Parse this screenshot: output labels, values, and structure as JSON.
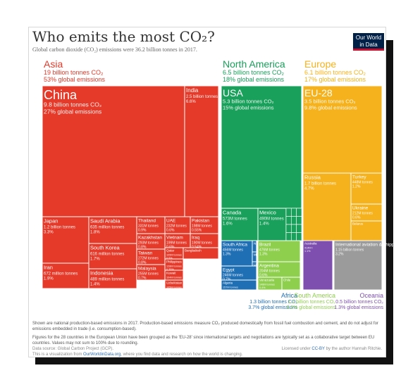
{
  "page": {
    "title": "Who emits the most CO₂?",
    "subtitle": "Global carbon dioxide (CO₂) emissions were 36.2 billion tonnes in 2017.",
    "logo_line1": "Our World",
    "logo_line2": "in Data",
    "note1": "Shown are national production-based emissions in 2017. Production-based emissions measure CO₂ produced domestically from fossil fuel combustion and cement, and do not adjust for emissions embedded in trade (i.e. consumption-based).",
    "note2": "Figures for the 28 countries in the European Union have been grouped as the 'EU-28' since international targets and negotiations are typically set as a collaborative target between EU countries. Values may not sum to 100% due to rounding.",
    "source": "Data source: Global Carbon Project (GCP).",
    "visualization_prefix": "This is a visualization from ",
    "visualization_link": "OurWorldinData.org",
    "visualization_suffix": ", where you find data and research on how the world is changing.",
    "license_prefix": "Licensed under ",
    "license_link": "CC-BY",
    "license_suffix": " by the author Hannah Ritchie."
  },
  "chart_data": {
    "type": "treemap",
    "unit": "share of global CO₂ emissions, 2017",
    "colors": {
      "Asia": "#e53a2a",
      "North America": "#19a05a",
      "Europe": "#f6b21c",
      "Africa": "#1f6fb5",
      "South America": "#8fcf4e",
      "Oceania": "#7e4fae",
      "International": "#9b9b9b"
    },
    "regions": [
      {
        "name": "Asia",
        "color_key": "Asia",
        "value_label": "19 billion tonnes CO₂",
        "share_label": "53% global emissions",
        "countries": [
          {
            "name": "China",
            "size": 27,
            "lines": [
              "9.8 billion tonnes CO₂",
              "27% global emissions"
            ],
            "text": "xl"
          },
          {
            "name": "India",
            "size": 6.6,
            "lines": [
              "2.5 billion tonnes",
              "6.6%"
            ],
            "text": "md"
          },
          {
            "name": "Japan",
            "size": 3.3,
            "lines": [
              "1.2 billion tonnes",
              "3.3%"
            ],
            "text": "sm"
          },
          {
            "name": "Saudi Arabia",
            "size": 1.8,
            "lines": [
              "635 million tonnes",
              "1.8%"
            ],
            "text": "sm"
          },
          {
            "name": "Thailand",
            "size": 0.9,
            "lines": [
              "331M tonnes",
              "0.9%"
            ],
            "text": "xs"
          },
          {
            "name": "UAE",
            "size": 0.6,
            "lines": [
              "232M tonnes",
              "0.6%"
            ],
            "text": "xs"
          },
          {
            "name": "Pakistan",
            "size": 0.55,
            "lines": [
              "198M tonnes",
              "0.55%"
            ],
            "text": "xs"
          },
          {
            "name": "Vietnam",
            "size": 0.6,
            "lines": [
              "199M tonnes",
              "0.6%"
            ],
            "text": "xs"
          },
          {
            "name": "Iraq",
            "size": 0.54,
            "lines": [
              "190M tonnes",
              "0.54%"
            ],
            "text": "xs"
          },
          {
            "name": "Kazakhstan",
            "size": 0.8,
            "lines": [
              "293M tonnes",
              "0.8%"
            ],
            "text": "xs"
          },
          {
            "name": "Qatar",
            "size": 0.5,
            "lines": [
              "105M tonnes",
              "0.5%"
            ],
            "text": "xxs"
          },
          {
            "name": "Bangladesh",
            "size": 0.2,
            "lines": [],
            "text": "xxs"
          },
          {
            "name": "Iran",
            "size": 1.9,
            "lines": [
              "672 million tonnes",
              "1.9%"
            ],
            "text": "sm"
          },
          {
            "name": "South Korea",
            "size": 1.7,
            "lines": [
              "616 million tonnes",
              "1.7%"
            ],
            "text": "sm"
          },
          {
            "name": "Taiwan",
            "size": 0.8,
            "lines": [
              "272M tonnes",
              "0.8%"
            ],
            "text": "xs"
          },
          {
            "name": "Philippines",
            "size": 0.35,
            "lines": [
              "128M tonnes",
              "0.35%"
            ],
            "text": "xxs"
          },
          {
            "name": "Kuwait",
            "size": 0.3,
            "lines": [
              "104M tonnes",
              "0.3%"
            ],
            "text": "xxs"
          },
          {
            "name": "Indonesia",
            "size": 1.4,
            "lines": [
              "489 million tonnes",
              "1.4%"
            ],
            "text": "sm"
          },
          {
            "name": "Malaysia",
            "size": 0.7,
            "lines": [
              "255M tonnes",
              "0.7%"
            ],
            "text": "xs"
          },
          {
            "name": "Uzbekistan",
            "size": 0.3,
            "lines": [
              "105M tonnes",
              "0.3%"
            ],
            "text": "xxs"
          }
        ]
      },
      {
        "name": "North America",
        "color_key": "North America",
        "value_label": "6.5 billion tonnes CO₂",
        "share_label": "18% global emissions",
        "countries": [
          {
            "name": "USA",
            "size": 15,
            "lines": [
              "5.3 billion tonnes CO₂",
              "15% global emissions"
            ],
            "text": "lg"
          },
          {
            "name": "Canada",
            "size": 1.6,
            "lines": [
              "573M tonnes",
              "1.6%"
            ],
            "text": "sm"
          },
          {
            "name": "Mexico",
            "size": 1.4,
            "lines": [
              "490M tonnes",
              "1.4%"
            ],
            "text": "sm"
          }
        ]
      },
      {
        "name": "Europe",
        "color_key": "Europe",
        "value_label": "6.1 billion tonnes CO₂",
        "share_label": "17% global emissions",
        "countries": [
          {
            "name": "EU-28",
            "size": 9.8,
            "lines": [
              "3.5 billion tonnes CO₂",
              "9.8% global emissions"
            ],
            "text": "lg"
          },
          {
            "name": "Russia",
            "size": 4.7,
            "lines": [
              "1.7 billion tonnes",
              "4.7%"
            ],
            "text": "sm"
          },
          {
            "name": "Turkey",
            "size": 1.2,
            "lines": [
              "448M tonnes",
              "1.2%"
            ],
            "text": "xs"
          },
          {
            "name": "Ukraine",
            "size": 0.6,
            "lines": [
              "212M tonnes",
              "0.6%"
            ],
            "text": "xs"
          },
          {
            "name": "Belarus",
            "size": 0.2,
            "lines": [],
            "text": "xxs"
          }
        ]
      },
      {
        "name": "Africa",
        "color_key": "Africa",
        "value_label": "1.3 billion tonnes CO₂",
        "share_label": "3.7% global emissions",
        "countries": [
          {
            "name": "South Africa",
            "size": 1.3,
            "lines": [
              "456M tonnes",
              "1.3%"
            ],
            "text": "xs"
          },
          {
            "name": "Nigeria",
            "size": 0.3,
            "lines": [],
            "text": "xxs"
          },
          {
            "name": "Morocco",
            "size": 0.2,
            "lines": [],
            "text": "xxs"
          },
          {
            "name": "Libya",
            "size": 0.15,
            "lines": [],
            "text": "xxs"
          },
          {
            "name": "Egypt",
            "size": 0.7,
            "lines": [
              "246M tonnes",
              "0.7%"
            ],
            "text": "xs"
          },
          {
            "name": "Algeria",
            "size": 0.45,
            "lines": [
              "157M tonnes",
              "0.45%"
            ],
            "text": "xxs"
          }
        ]
      },
      {
        "name": "South America",
        "color_key": "South America",
        "value_label": "1.1 billion tonnes CO₂",
        "share_label": "3.2% global emissions",
        "countries": [
          {
            "name": "Brazil",
            "size": 1.3,
            "lines": [
              "476M tonnes",
              "1.3%"
            ],
            "text": "xs"
          },
          {
            "name": "Argentina",
            "size": 0.6,
            "lines": [
              "204M tonnes",
              "0.6%"
            ],
            "text": "xs"
          },
          {
            "name": "Venezuela",
            "size": 0.4,
            "lines": [
              "148M tonnes",
              "0.4%"
            ],
            "text": "xxs"
          },
          {
            "name": "Chile",
            "size": 0.25,
            "lines": [],
            "text": "xxs"
          }
        ]
      },
      {
        "name": "Oceania",
        "color_key": "Oceania",
        "value_label": "0.5 billion tonnes CO₂",
        "share_label": "1.3% global emissions",
        "countries": [
          {
            "name": "Australia",
            "size": 1.1,
            "lines": [
              "414M t",
              "1.1%"
            ],
            "text": "xxs"
          }
        ]
      },
      {
        "name": "International aviation & shipping",
        "color_key": "International",
        "value_label": "",
        "share_label": "",
        "countries": [
          {
            "name": "International aviation & shipping",
            "size": 3.2,
            "lines": [
              "1.15 billion tonnes",
              "3.2%"
            ],
            "text": "xs"
          }
        ]
      }
    ]
  }
}
